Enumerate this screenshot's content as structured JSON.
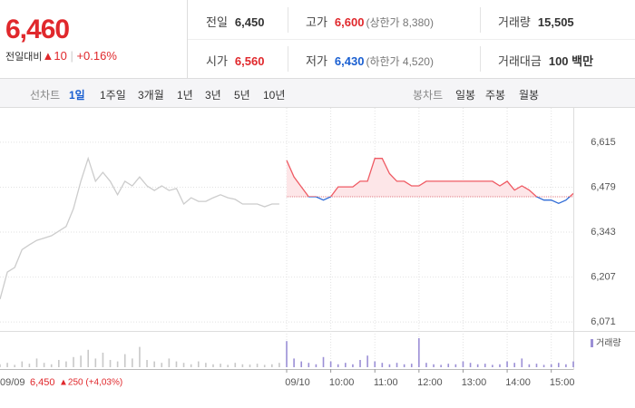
{
  "quote": {
    "price": "6,460",
    "change_label": "전일대비",
    "change": "▲10",
    "rate": "+0.16%"
  },
  "stats": [
    [
      {
        "label": "전일",
        "value": "6,450"
      },
      {
        "label": "고가",
        "value": "6,600",
        "note": "(상한가 8,380)"
      },
      {
        "label": "거래량",
        "value": "15,505"
      }
    ],
    [
      {
        "label": "시가",
        "value": "6,560"
      },
      {
        "label": "저가",
        "value": "6,430",
        "note": "(하한가 4,520)"
      },
      {
        "label": "거래대금",
        "value": "100 백만"
      }
    ]
  ],
  "line_tabs": {
    "label": "선차트",
    "items": [
      "1일",
      "1주일",
      "3개월",
      "1년",
      "3년",
      "5년",
      "10년"
    ]
  },
  "candle_tabs": {
    "label": "봉차트",
    "items": [
      "일봉",
      "주봉",
      "월봉"
    ]
  },
  "footer": {
    "date": "09/09",
    "price": "6,450",
    "change": "▲250 (+4,03%)"
  },
  "chart_data": {
    "type": "line",
    "categories": [
      null,
      null,
      null,
      null,
      null,
      null,
      null,
      null,
      null,
      null,
      null,
      null,
      null,
      null,
      null,
      null,
      null,
      null,
      null,
      null,
      null,
      null,
      null,
      null,
      null,
      null,
      null,
      null,
      null,
      null,
      null,
      null,
      null,
      null,
      null,
      null,
      null,
      null,
      null,
      "09/10",
      null,
      null,
      null,
      null,
      null,
      "10:00",
      null,
      null,
      null,
      null,
      null,
      "11:00",
      null,
      null,
      null,
      null,
      null,
      "12:00",
      null,
      null,
      null,
      null,
      null,
      "13:00",
      null,
      null,
      null,
      null,
      null,
      "14:00",
      null,
      null,
      null,
      null,
      null,
      "15:00",
      null,
      null,
      null
    ],
    "series": [
      {
        "color": "#cccccc",
        "values": [
          6140,
          6222,
          6236,
          6290,
          6305,
          6318,
          6325,
          6332,
          6346,
          6360,
          6414,
          6497,
          6566,
          6497,
          6524,
          6497,
          6456,
          6497,
          6483,
          6510,
          6483,
          6469,
          6483,
          6469,
          6475,
          6428,
          6447,
          6436,
          6436,
          6447,
          6456,
          6447,
          6442,
          6428,
          6428,
          6428,
          6420,
          6428,
          6428,
          null,
          null,
          null,
          null,
          null,
          null,
          null,
          null,
          null,
          null,
          null,
          null,
          null,
          null,
          null,
          null,
          null,
          null,
          null,
          null,
          null,
          null,
          null,
          null,
          null,
          null,
          null,
          null,
          null,
          null,
          null,
          null,
          null,
          null,
          null,
          null,
          null,
          null,
          null,
          null
        ]
      },
      {
        "color": "#ef5a63",
        "values": [
          null,
          null,
          null,
          null,
          null,
          null,
          null,
          null,
          null,
          null,
          null,
          null,
          null,
          null,
          null,
          null,
          null,
          null,
          null,
          null,
          null,
          null,
          null,
          null,
          null,
          null,
          null,
          null,
          null,
          null,
          null,
          null,
          null,
          null,
          null,
          null,
          null,
          null,
          null,
          6560,
          6510,
          6480,
          6450,
          6450,
          6440,
          6450,
          6480,
          6480,
          6480,
          6497,
          6497,
          6566,
          6566,
          6520,
          6497,
          6497,
          6483,
          6483,
          6497,
          6497,
          6497,
          6497,
          6497,
          6497,
          6497,
          6497,
          6497,
          6497,
          6483,
          6497,
          6470,
          6483,
          6470,
          6450,
          6440,
          6440,
          6430,
          6440,
          6460
        ]
      }
    ],
    "baseline": 6450,
    "below_color": "#2f6bd6",
    "volume_legend": "거래량",
    "volume_color": "#9b8fd6",
    "volume": [
      100,
      150,
      80,
      200,
      120,
      300,
      150,
      100,
      250,
      200,
      350,
      400,
      600,
      300,
      500,
      250,
      200,
      450,
      300,
      700,
      250,
      200,
      150,
      300,
      200,
      150,
      100,
      200,
      150,
      100,
      120,
      80,
      150,
      100,
      90,
      120,
      80,
      100,
      150,
      900,
      300,
      200,
      150,
      100,
      350,
      200,
      100,
      150,
      100,
      250,
      400,
      200,
      150,
      100,
      150,
      100,
      120,
      1000,
      150,
      100,
      80,
      120,
      100,
      200,
      150,
      100,
      120,
      80,
      100,
      200,
      150,
      300,
      100,
      120,
      80,
      100,
      150,
      100,
      200
    ],
    "volume_ylim": [
      0,
      1000
    ],
    "ylim": [
      6044,
      6697
    ],
    "yticks": [
      {
        "value": 6071,
        "label": "6,071"
      },
      {
        "value": 6207,
        "label": "6,207"
      },
      {
        "value": 6343,
        "label": "6,343"
      },
      {
        "value": 6479,
        "label": "6,479"
      },
      {
        "value": 6615,
        "label": "6,615"
      }
    ],
    "grid": true
  }
}
